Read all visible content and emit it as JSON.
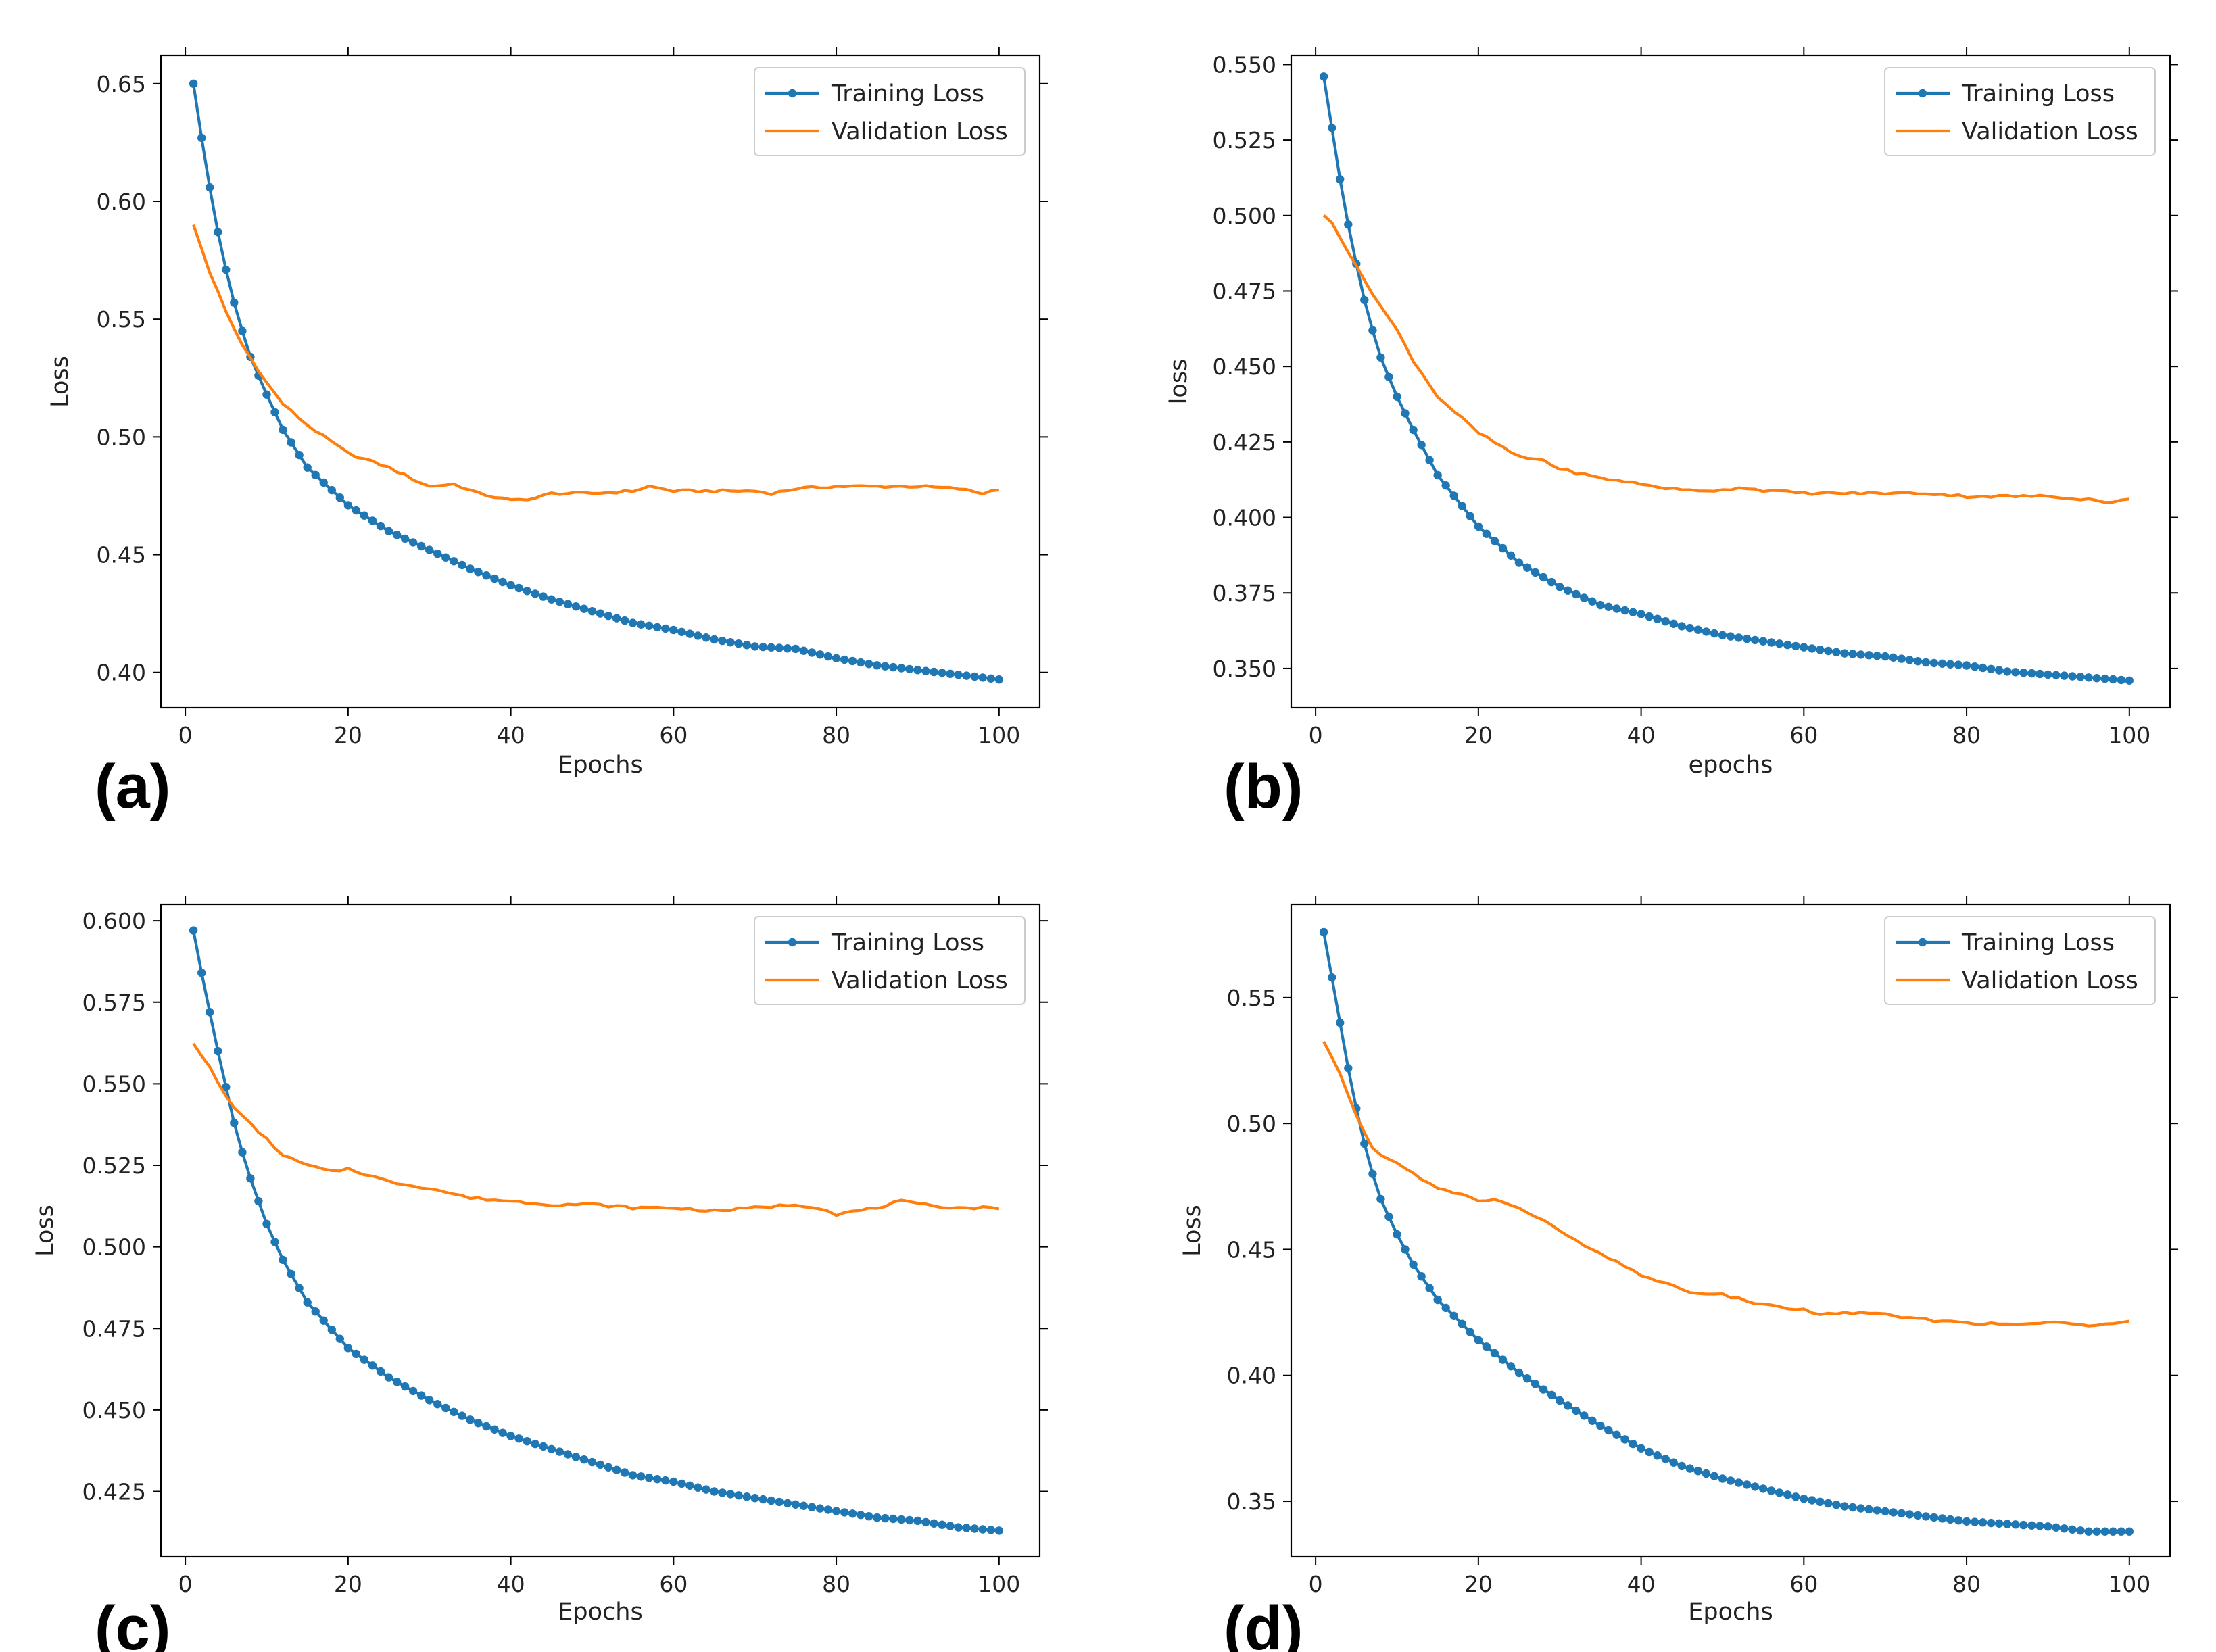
{
  "figure": {
    "background": "#ffffff",
    "train_color": "#1f77b4",
    "val_color": "#ff7f0e"
  },
  "chart_data": [
    {
      "type": "line",
      "panel_label": "(a)",
      "xlabel": "Epochs",
      "ylabel": "Loss",
      "xlim": [
        -3,
        105
      ],
      "ylim": [
        0.385,
        0.662
      ],
      "x_ticks": [
        0,
        20,
        40,
        60,
        80,
        100
      ],
      "y_ticks": [
        0.4,
        0.45,
        0.5,
        0.55,
        0.6,
        0.65
      ],
      "y_tick_labels": [
        "0.40",
        "0.45",
        "0.50",
        "0.55",
        "0.60",
        "0.65"
      ],
      "legend": [
        "Training Loss",
        "Validation Loss"
      ],
      "legend_position": "upper right",
      "epochs": [
        1,
        100
      ],
      "series": [
        {
          "name": "Training Loss",
          "marker": "circle",
          "anchors": [
            [
              1,
              0.65
            ],
            [
              2,
              0.627
            ],
            [
              3,
              0.606
            ],
            [
              4,
              0.587
            ],
            [
              5,
              0.571
            ],
            [
              6,
              0.557
            ],
            [
              7,
              0.545
            ],
            [
              8,
              0.534
            ],
            [
              10,
              0.518
            ],
            [
              12,
              0.503
            ],
            [
              15,
              0.487
            ],
            [
              20,
              0.471
            ],
            [
              25,
              0.46
            ],
            [
              30,
              0.452
            ],
            [
              35,
              0.444
            ],
            [
              40,
              0.437
            ],
            [
              45,
              0.431
            ],
            [
              50,
              0.426
            ],
            [
              55,
              0.421
            ],
            [
              60,
              0.418
            ],
            [
              65,
              0.414
            ],
            [
              70,
              0.411
            ],
            [
              75,
              0.41
            ],
            [
              80,
              0.406
            ],
            [
              85,
              0.403
            ],
            [
              90,
              0.401
            ],
            [
              95,
              0.399
            ],
            [
              100,
              0.397
            ]
          ]
        },
        {
          "name": "Validation Loss",
          "marker": "none",
          "anchors": [
            [
              1,
              0.59
            ],
            [
              3,
              0.57
            ],
            [
              5,
              0.553
            ],
            [
              7,
              0.539
            ],
            [
              10,
              0.523
            ],
            [
              12,
              0.514
            ],
            [
              15,
              0.505
            ],
            [
              20,
              0.493
            ],
            [
              25,
              0.487
            ],
            [
              28,
              0.482
            ],
            [
              30,
              0.479
            ],
            [
              33,
              0.48
            ],
            [
              36,
              0.476
            ],
            [
              40,
              0.473
            ],
            [
              43,
              0.474
            ],
            [
              45,
              0.476
            ],
            [
              50,
              0.476
            ],
            [
              55,
              0.477
            ],
            [
              57,
              0.479
            ],
            [
              60,
              0.477
            ],
            [
              65,
              0.477
            ],
            [
              70,
              0.477
            ],
            [
              72,
              0.476
            ],
            [
              75,
              0.478
            ],
            [
              80,
              0.479
            ],
            [
              85,
              0.479
            ],
            [
              90,
              0.479
            ],
            [
              95,
              0.478
            ],
            [
              98,
              0.476
            ],
            [
              100,
              0.478
            ]
          ]
        }
      ]
    },
    {
      "type": "line",
      "panel_label": "(b)",
      "xlabel": "epochs",
      "ylabel": "loss",
      "xlim": [
        -3,
        105
      ],
      "ylim": [
        0.337,
        0.553
      ],
      "x_ticks": [
        0,
        20,
        40,
        60,
        80,
        100
      ],
      "y_ticks": [
        0.35,
        0.375,
        0.4,
        0.425,
        0.45,
        0.475,
        0.5,
        0.525,
        0.55
      ],
      "y_tick_labels": [
        "0.350",
        "0.375",
        "0.400",
        "0.425",
        "0.450",
        "0.475",
        "0.500",
        "0.525",
        "0.550"
      ],
      "legend": [
        "Training Loss",
        "Validation Loss"
      ],
      "legend_position": "upper right",
      "epochs": [
        1,
        100
      ],
      "series": [
        {
          "name": "Training Loss",
          "marker": "circle",
          "anchors": [
            [
              1,
              0.546
            ],
            [
              2,
              0.529
            ],
            [
              3,
              0.512
            ],
            [
              4,
              0.497
            ],
            [
              5,
              0.484
            ],
            [
              6,
              0.472
            ],
            [
              7,
              0.462
            ],
            [
              8,
              0.453
            ],
            [
              10,
              0.44
            ],
            [
              12,
              0.429
            ],
            [
              15,
              0.414
            ],
            [
              20,
              0.397
            ],
            [
              25,
              0.385
            ],
            [
              30,
              0.377
            ],
            [
              35,
              0.371
            ],
            [
              40,
              0.368
            ],
            [
              45,
              0.364
            ],
            [
              50,
              0.361
            ],
            [
              55,
              0.359
            ],
            [
              60,
              0.357
            ],
            [
              65,
              0.355
            ],
            [
              70,
              0.354
            ],
            [
              75,
              0.352
            ],
            [
              80,
              0.351
            ],
            [
              85,
              0.349
            ],
            [
              90,
              0.348
            ],
            [
              95,
              0.347
            ],
            [
              100,
              0.346
            ]
          ]
        },
        {
          "name": "Validation Loss",
          "marker": "none",
          "anchors": [
            [
              1,
              0.5
            ],
            [
              2,
              0.498
            ],
            [
              3,
              0.493
            ],
            [
              5,
              0.483
            ],
            [
              8,
              0.47
            ],
            [
              10,
              0.462
            ],
            [
              12,
              0.452
            ],
            [
              15,
              0.44
            ],
            [
              20,
              0.428
            ],
            [
              25,
              0.42
            ],
            [
              28,
              0.419
            ],
            [
              30,
              0.416
            ],
            [
              35,
              0.413
            ],
            [
              38,
              0.412
            ],
            [
              40,
              0.411
            ],
            [
              45,
              0.409
            ],
            [
              50,
              0.409
            ],
            [
              52,
              0.41
            ],
            [
              55,
              0.409
            ],
            [
              60,
              0.408
            ],
            [
              65,
              0.408
            ],
            [
              70,
              0.408
            ],
            [
              75,
              0.408
            ],
            [
              80,
              0.407
            ],
            [
              85,
              0.407
            ],
            [
              90,
              0.407
            ],
            [
              95,
              0.406
            ],
            [
              98,
              0.405
            ],
            [
              100,
              0.406
            ]
          ]
        }
      ]
    },
    {
      "type": "line",
      "panel_label": "(c)",
      "xlabel": "Epochs",
      "ylabel": "Loss",
      "xlim": [
        -3,
        105
      ],
      "ylim": [
        0.405,
        0.605
      ],
      "x_ticks": [
        0,
        20,
        40,
        60,
        80,
        100
      ],
      "y_ticks": [
        0.425,
        0.45,
        0.475,
        0.5,
        0.525,
        0.55,
        0.575,
        0.6
      ],
      "y_tick_labels": [
        "0.425",
        "0.450",
        "0.475",
        "0.500",
        "0.525",
        "0.550",
        "0.575",
        "0.600"
      ],
      "legend": [
        "Training Loss",
        "Validation Loss"
      ],
      "legend_position": "upper right",
      "epochs": [
        1,
        100
      ],
      "series": [
        {
          "name": "Training Loss",
          "marker": "circle",
          "anchors": [
            [
              1,
              0.597
            ],
            [
              2,
              0.584
            ],
            [
              3,
              0.572
            ],
            [
              4,
              0.56
            ],
            [
              5,
              0.549
            ],
            [
              6,
              0.538
            ],
            [
              7,
              0.529
            ],
            [
              8,
              0.521
            ],
            [
              10,
              0.507
            ],
            [
              12,
              0.496
            ],
            [
              15,
              0.483
            ],
            [
              20,
              0.469
            ],
            [
              25,
              0.46
            ],
            [
              30,
              0.453
            ],
            [
              35,
              0.447
            ],
            [
              40,
              0.442
            ],
            [
              45,
              0.438
            ],
            [
              50,
              0.434
            ],
            [
              55,
              0.43
            ],
            [
              60,
              0.428
            ],
            [
              65,
              0.425
            ],
            [
              70,
              0.423
            ],
            [
              75,
              0.421
            ],
            [
              80,
              0.419
            ],
            [
              85,
              0.417
            ],
            [
              90,
              0.416
            ],
            [
              95,
              0.414
            ],
            [
              100,
              0.413
            ]
          ]
        },
        {
          "name": "Validation Loss",
          "marker": "none",
          "anchors": [
            [
              1,
              0.562
            ],
            [
              3,
              0.555
            ],
            [
              5,
              0.546
            ],
            [
              7,
              0.54
            ],
            [
              10,
              0.533
            ],
            [
              12,
              0.528
            ],
            [
              15,
              0.525
            ],
            [
              18,
              0.523
            ],
            [
              20,
              0.524
            ],
            [
              25,
              0.52
            ],
            [
              30,
              0.518
            ],
            [
              35,
              0.515
            ],
            [
              40,
              0.514
            ],
            [
              45,
              0.513
            ],
            [
              50,
              0.513
            ],
            [
              55,
              0.512
            ],
            [
              60,
              0.512
            ],
            [
              65,
              0.511
            ],
            [
              70,
              0.512
            ],
            [
              75,
              0.513
            ],
            [
              78,
              0.512
            ],
            [
              80,
              0.51
            ],
            [
              85,
              0.512
            ],
            [
              88,
              0.514
            ],
            [
              90,
              0.513
            ],
            [
              95,
              0.512
            ],
            [
              100,
              0.512
            ]
          ]
        }
      ]
    },
    {
      "type": "line",
      "panel_label": "(d)",
      "xlabel": "Epochs",
      "ylabel": "Loss",
      "xlim": [
        -3,
        105
      ],
      "ylim": [
        0.328,
        0.587
      ],
      "x_ticks": [
        0,
        20,
        40,
        60,
        80,
        100
      ],
      "y_ticks": [
        0.35,
        0.4,
        0.45,
        0.5,
        0.55
      ],
      "y_tick_labels": [
        "0.35",
        "0.40",
        "0.45",
        "0.50",
        "0.55"
      ],
      "legend": [
        "Training Loss",
        "Validation Loss"
      ],
      "legend_position": "upper right",
      "epochs": [
        1,
        100
      ],
      "series": [
        {
          "name": "Training Loss",
          "marker": "circle",
          "anchors": [
            [
              1,
              0.576
            ],
            [
              2,
              0.558
            ],
            [
              3,
              0.54
            ],
            [
              4,
              0.522
            ],
            [
              5,
              0.506
            ],
            [
              6,
              0.492
            ],
            [
              7,
              0.48
            ],
            [
              8,
              0.47
            ],
            [
              10,
              0.456
            ],
            [
              12,
              0.444
            ],
            [
              15,
              0.43
            ],
            [
              20,
              0.414
            ],
            [
              25,
              0.401
            ],
            [
              30,
              0.39
            ],
            [
              35,
              0.38
            ],
            [
              40,
              0.371
            ],
            [
              45,
              0.364
            ],
            [
              50,
              0.359
            ],
            [
              55,
              0.355
            ],
            [
              60,
              0.351
            ],
            [
              65,
              0.348
            ],
            [
              70,
              0.346
            ],
            [
              75,
              0.344
            ],
            [
              80,
              0.342
            ],
            [
              85,
              0.341
            ],
            [
              90,
              0.34
            ],
            [
              95,
              0.338
            ],
            [
              100,
              0.338
            ]
          ]
        },
        {
          "name": "Validation Loss",
          "marker": "none",
          "anchors": [
            [
              1,
              0.532
            ],
            [
              3,
              0.52
            ],
            [
              5,
              0.503
            ],
            [
              7,
              0.49
            ],
            [
              10,
              0.484
            ],
            [
              12,
              0.48
            ],
            [
              15,
              0.474
            ],
            [
              18,
              0.472
            ],
            [
              20,
              0.469
            ],
            [
              22,
              0.47
            ],
            [
              25,
              0.466
            ],
            [
              28,
              0.462
            ],
            [
              30,
              0.457
            ],
            [
              35,
              0.448
            ],
            [
              40,
              0.44
            ],
            [
              45,
              0.434
            ],
            [
              48,
              0.432
            ],
            [
              50,
              0.432
            ],
            [
              55,
              0.428
            ],
            [
              60,
              0.426
            ],
            [
              62,
              0.424
            ],
            [
              65,
              0.425
            ],
            [
              70,
              0.424
            ],
            [
              75,
              0.422
            ],
            [
              80,
              0.421
            ],
            [
              85,
              0.42
            ],
            [
              90,
              0.421
            ],
            [
              95,
              0.42
            ],
            [
              98,
              0.421
            ],
            [
              100,
              0.422
            ]
          ]
        }
      ]
    }
  ]
}
